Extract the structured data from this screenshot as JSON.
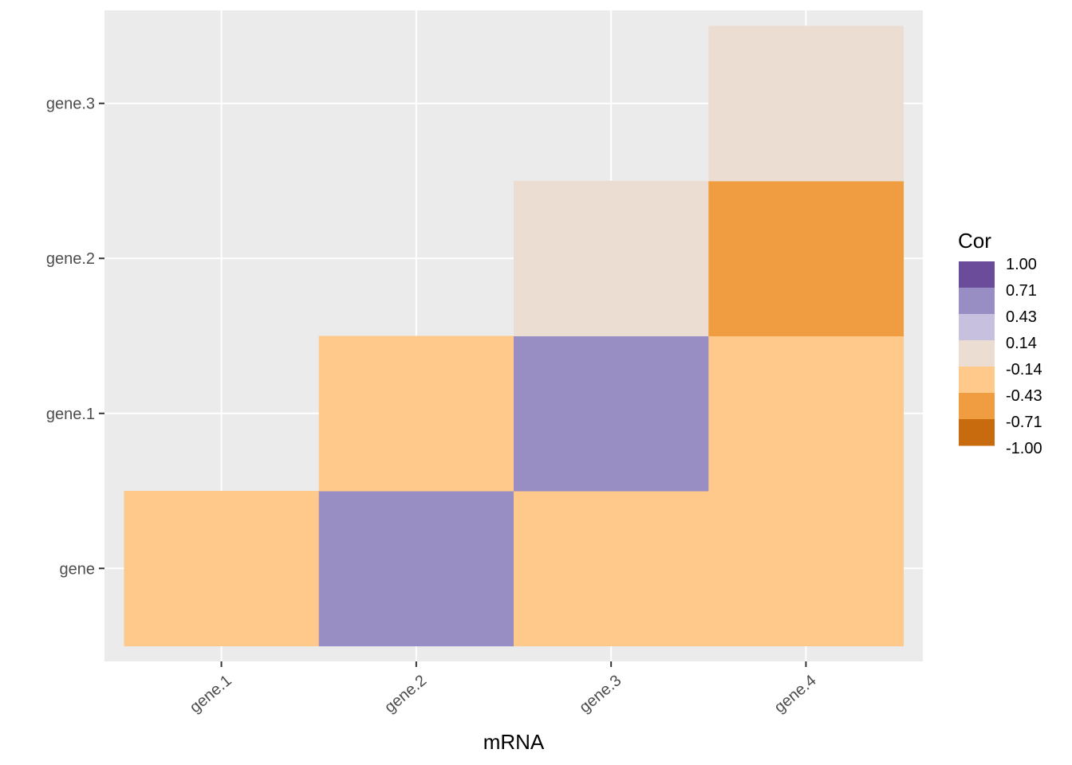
{
  "chart_data": {
    "type": "heatmap",
    "title": "",
    "xlabel": "mRNA",
    "ylabel": "",
    "x_categories": [
      "gene.1",
      "gene.2",
      "gene.3",
      "gene.4"
    ],
    "y_categories": [
      "gene",
      "gene.1",
      "gene.2",
      "gene.3"
    ],
    "grid": true,
    "legend_position": "right",
    "legend": {
      "title": "Cor",
      "breaks": [
        "1.00",
        "0.71",
        "0.43",
        "0.14",
        "-0.14",
        "-0.43",
        "-0.71",
        "-1.00"
      ],
      "bins": [
        {
          "color": "#6b4c9a"
        },
        {
          "color": "#998ec3"
        },
        {
          "color": "#c7c1df"
        },
        {
          "color": "#ebddd2"
        },
        {
          "color": "#fec98b"
        },
        {
          "color": "#f09d41"
        },
        {
          "color": "#c86b0f"
        }
      ]
    },
    "cells": [
      {
        "x": "gene.1",
        "y": "gene",
        "bin": 4,
        "color": "#fec98b"
      },
      {
        "x": "gene.2",
        "y": "gene",
        "bin": 1,
        "color": "#998ec3"
      },
      {
        "x": "gene.3",
        "y": "gene",
        "bin": 4,
        "color": "#fec98b"
      },
      {
        "x": "gene.4",
        "y": "gene",
        "bin": 4,
        "color": "#fec98b"
      },
      {
        "x": "gene.2",
        "y": "gene.1",
        "bin": 4,
        "color": "#fec98b"
      },
      {
        "x": "gene.3",
        "y": "gene.1",
        "bin": 1,
        "color": "#998ec3"
      },
      {
        "x": "gene.4",
        "y": "gene.1",
        "bin": 4,
        "color": "#fec98b"
      },
      {
        "x": "gene.3",
        "y": "gene.2",
        "bin": 3,
        "color": "#ebddd2"
      },
      {
        "x": "gene.4",
        "y": "gene.2",
        "bin": 5,
        "color": "#f09d41"
      },
      {
        "x": "gene.4",
        "y": "gene.3",
        "bin": 3,
        "color": "#ebddd2"
      }
    ],
    "colors": {
      "panel_background": "#ebebeb",
      "grid": "#ffffff",
      "tick": "#333333"
    }
  }
}
